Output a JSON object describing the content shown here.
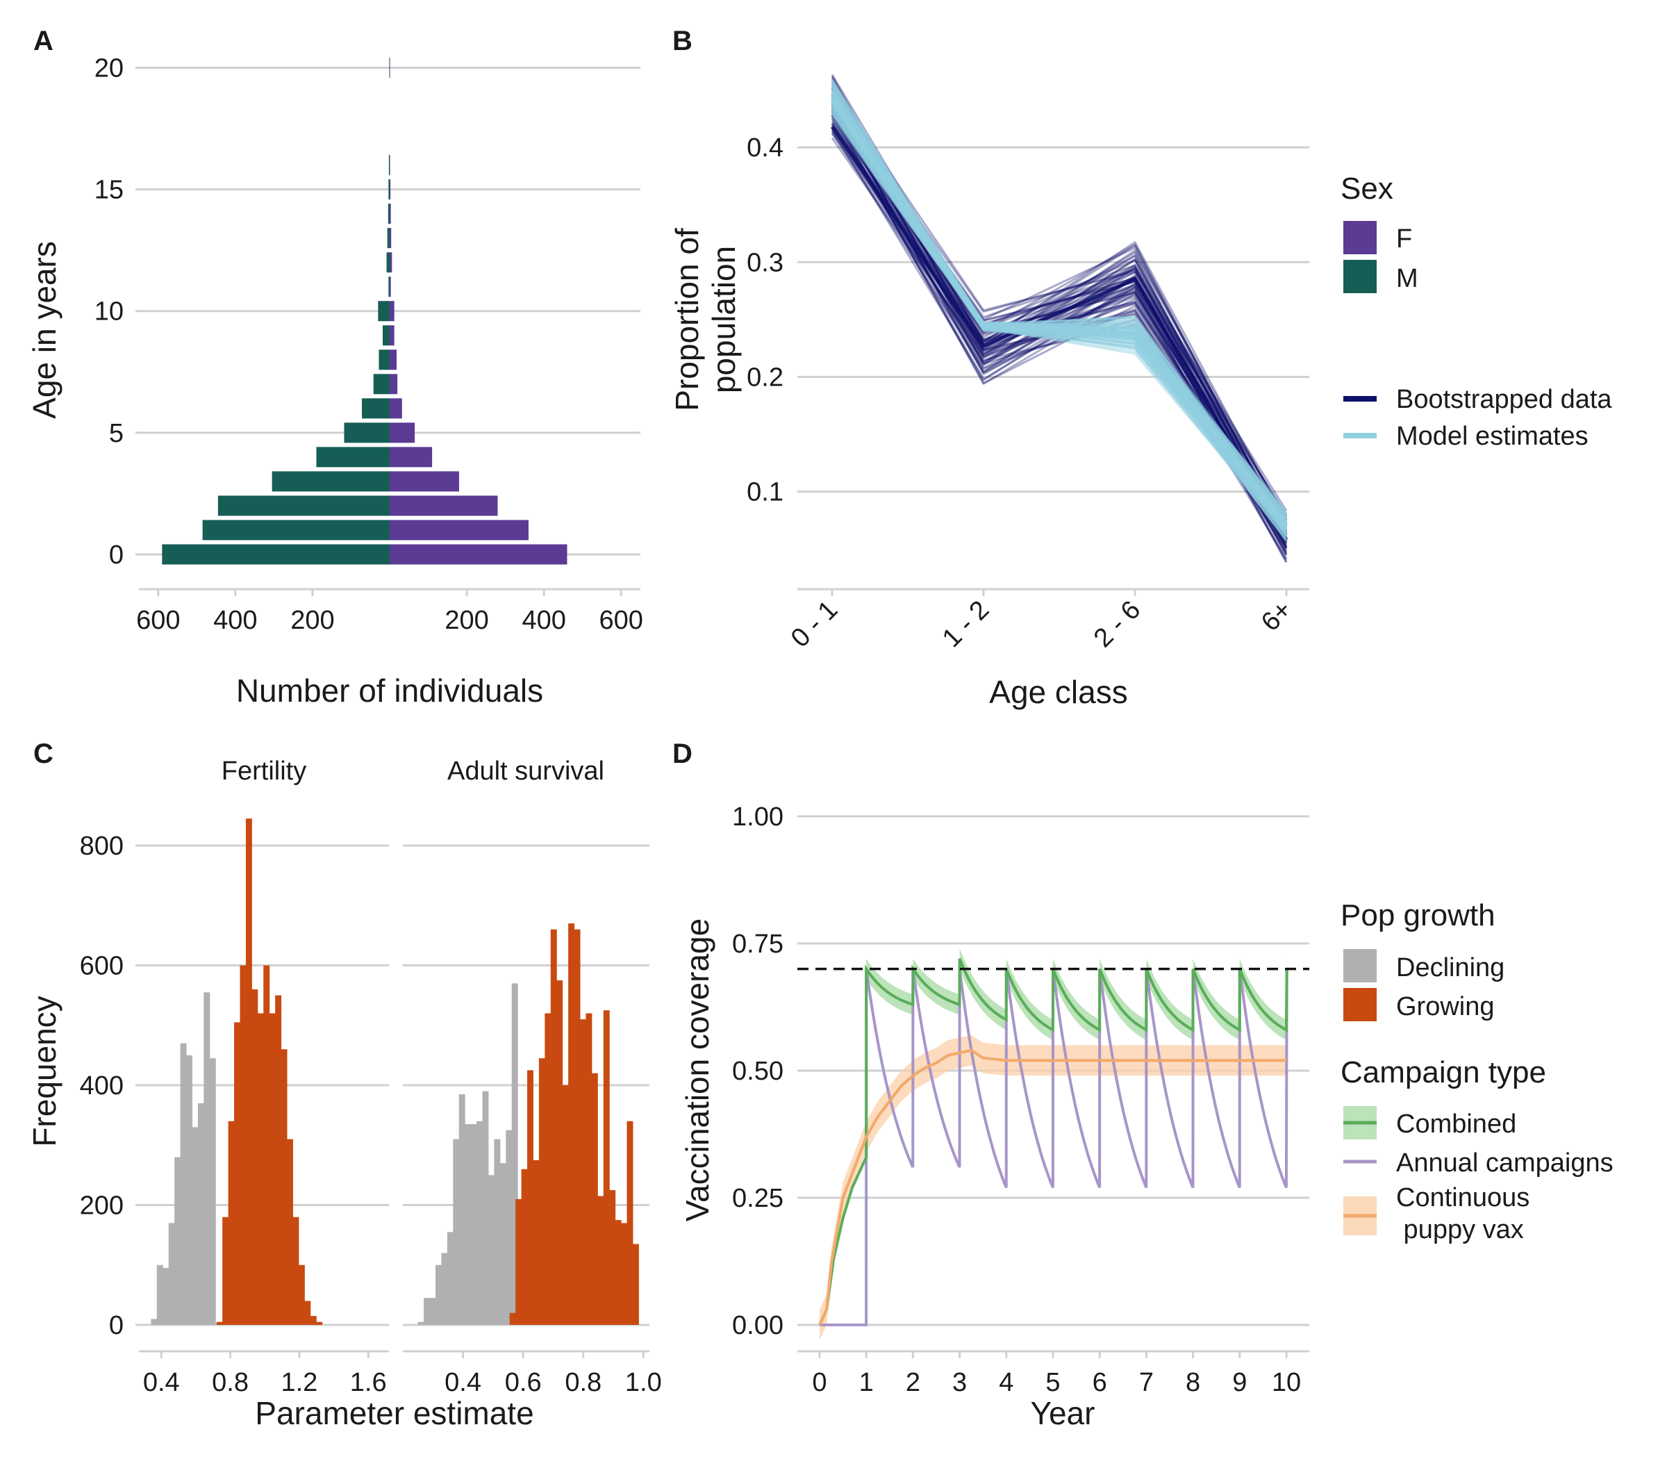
{
  "colors": {
    "female": "#5b3b93",
    "male": "#165e55",
    "bootstrapped": "#0d0f6b",
    "model": "#90cfe0",
    "declining": "#b0b0b0",
    "growing": "#c94a10",
    "combined": "#5aad5a",
    "combined_band": "#9fd79b",
    "annual": "#a795c9",
    "continuous": "#f2a96b",
    "continuous_band": "#fbcfa8"
  },
  "panels": {
    "A": {
      "letter": "A",
      "ylabel": "Age in years",
      "xlabel": "Number of individuals",
      "yticks": [
        "0",
        "5",
        "10",
        "15",
        "20"
      ],
      "xticks_left": [
        "600",
        "400",
        "200"
      ],
      "xticks_right": [
        "200",
        "400",
        "600"
      ]
    },
    "B": {
      "letter": "B",
      "ylabel_line1": "Proportion of",
      "ylabel_line2": "population",
      "xlabel": "Age class",
      "yticks": [
        "0.1",
        "0.2",
        "0.3",
        "0.4"
      ],
      "xticks": [
        "0 - 1",
        "1 - 2",
        "2 - 6",
        "6+"
      ]
    },
    "C": {
      "letter": "C",
      "ylabel": "Frequency",
      "xlabel": "Parameter estimate",
      "strip_left": "Fertility",
      "strip_right": "Adult survival",
      "yticks": [
        "0",
        "200",
        "400",
        "600",
        "800"
      ],
      "xticks_left": [
        "0.4",
        "0.8",
        "1.2",
        "1.6"
      ],
      "xticks_right": [
        "0.4",
        "0.6",
        "0.8",
        "1.0"
      ]
    },
    "D": {
      "letter": "D",
      "ylabel": "Vaccination coverage",
      "xlabel": "Year",
      "yticks": [
        "0.00",
        "0.25",
        "0.50",
        "0.75",
        "1.00"
      ],
      "xticks": [
        "0",
        "1",
        "2",
        "3",
        "4",
        "5",
        "6",
        "7",
        "8",
        "9",
        "10"
      ]
    }
  },
  "legends": {
    "sex": {
      "title": "Sex",
      "items": [
        "F",
        "M"
      ]
    },
    "lines": {
      "items": [
        "Bootstrapped data",
        "Model estimates"
      ]
    },
    "pop_growth": {
      "title": "Pop growth",
      "items": [
        "Declining",
        "Growing"
      ]
    },
    "campaign": {
      "title": "Campaign type",
      "items": [
        "Combined",
        "Annual campaigns",
        "Continuous",
        " puppy vax"
      ]
    }
  },
  "chart_data": [
    {
      "type": "bar",
      "panel": "A",
      "orientation": "horizontal population pyramid",
      "categories": [
        0,
        1,
        2,
        3,
        4,
        5,
        6,
        7,
        8,
        9,
        10,
        11,
        12,
        13,
        14,
        15,
        16,
        17,
        18,
        19,
        20
      ],
      "series": [
        {
          "name": "F",
          "values": [
            460,
            360,
            280,
            180,
            110,
            65,
            32,
            20,
            18,
            12,
            12,
            3,
            6,
            4,
            3,
            2,
            1,
            0,
            0,
            0,
            1
          ]
        },
        {
          "name": "M",
          "values": [
            590,
            485,
            445,
            305,
            190,
            118,
            72,
            42,
            28,
            18,
            30,
            3,
            8,
            6,
            4,
            3,
            2,
            0,
            0,
            0,
            1
          ]
        }
      ],
      "xlim": [
        -650,
        650
      ],
      "ylim": [
        -1,
        20.5
      ]
    },
    {
      "type": "line",
      "panel": "B",
      "categories": [
        "0 - 1",
        "1 - 2",
        "2 - 6",
        "6+"
      ],
      "series": [
        {
          "name": "Bootstrapped data",
          "center": [
            0.418,
            0.227,
            0.285,
            0.058
          ],
          "min": [
            0.405,
            0.19,
            0.245,
            0.035
          ],
          "max": [
            0.468,
            0.26,
            0.322,
            0.085
          ]
        },
        {
          "name": "Model estimates",
          "center": [
            0.442,
            0.243,
            0.238,
            0.07
          ],
          "min": [
            0.425,
            0.24,
            0.22,
            0.055
          ],
          "max": [
            0.462,
            0.248,
            0.255,
            0.085
          ]
        }
      ],
      "ylim": [
        0.015,
        0.48
      ]
    },
    {
      "type": "bar",
      "panel": "C",
      "facet": "Fertility",
      "bin_width": 0.034,
      "series": [
        {
          "name": "Declining",
          "start": 0.34,
          "values": [
            10,
            100,
            95,
            170,
            280,
            470,
            450,
            330,
            370,
            555,
            445
          ]
        },
        {
          "name": "Growing",
          "start": 0.72,
          "values": [
            5,
            180,
            340,
            505,
            600,
            845,
            560,
            520,
            600,
            520,
            550,
            460,
            310,
            180,
            100,
            40,
            15,
            5
          ]
        }
      ],
      "xlim": [
        0.27,
        1.72
      ],
      "ylim": [
        -40,
        880
      ]
    },
    {
      "type": "bar",
      "panel": "C",
      "facet": "Adult survival",
      "bin_width": 0.0195,
      "series": [
        {
          "name": "Declining",
          "start": 0.25,
          "values": [
            5,
            45,
            45,
            100,
            120,
            155,
            310,
            385,
            335,
            335,
            340,
            390,
            250,
            310,
            270,
            325,
            570
          ]
        },
        {
          "name": "Growing",
          "start": 0.555,
          "values": [
            20,
            210,
            260,
            425,
            275,
            445,
            520,
            660,
            575,
            400,
            670,
            660,
            510,
            520,
            420,
            215,
            525,
            225,
            175,
            170,
            340,
            135
          ]
        }
      ],
      "xlim": [
        0.2,
        1.02
      ],
      "ylim": [
        -40,
        880
      ]
    },
    {
      "type": "line",
      "panel": "D",
      "series": [
        {
          "name": "Combined",
          "x": [
            0,
            0.15,
            0.3,
            0.5,
            0.7,
            0.9,
            1,
            1.01,
            2,
            2.01,
            3,
            3.01,
            4,
            4.01,
            5,
            5.01,
            6,
            6.01,
            7,
            7.01,
            8,
            8.01,
            9,
            9.01,
            10,
            10.01
          ],
          "y": [
            0,
            0.03,
            0.13,
            0.21,
            0.27,
            0.31,
            0.33,
            0.7,
            0.63,
            0.7,
            0.63,
            0.72,
            0.6,
            0.7,
            0.58,
            0.7,
            0.58,
            0.7,
            0.58,
            0.7,
            0.58,
            0.7,
            0.58,
            0.7,
            0.58,
            0.7
          ],
          "band_halfwidth": 0.02
        },
        {
          "name": "Annual campaigns",
          "x": [
            0,
            0.15,
            1,
            1.01,
            2,
            2.01,
            3,
            3.01,
            4,
            4.01,
            5,
            5.01,
            6,
            6.01,
            7,
            7.01,
            8,
            8.01,
            9,
            9.01,
            10,
            10.01
          ],
          "y": [
            0,
            0,
            0,
            0.7,
            0.31,
            0.7,
            0.31,
            0.7,
            0.27,
            0.7,
            0.27,
            0.7,
            0.27,
            0.7,
            0.27,
            0.7,
            0.27,
            0.7,
            0.27,
            0.7,
            0.27,
            0.7
          ]
        },
        {
          "name": "Continuous puppy vax",
          "x": [
            0,
            0.15,
            0.25,
            0.5,
            0.75,
            1,
            1.25,
            1.5,
            1.75,
            2,
            2.25,
            2.5,
            2.75,
            3,
            3.25,
            3.5,
            4,
            10
          ],
          "y": [
            0,
            0.03,
            0.12,
            0.25,
            0.31,
            0.37,
            0.41,
            0.44,
            0.47,
            0.49,
            0.505,
            0.515,
            0.53,
            0.535,
            0.54,
            0.525,
            0.52,
            0.52
          ],
          "band_halfwidth": 0.03
        }
      ],
      "reference_line": 0.7,
      "xlim": [
        -0.4,
        10.5
      ],
      "ylim": [
        -0.05,
        1.07
      ]
    }
  ]
}
